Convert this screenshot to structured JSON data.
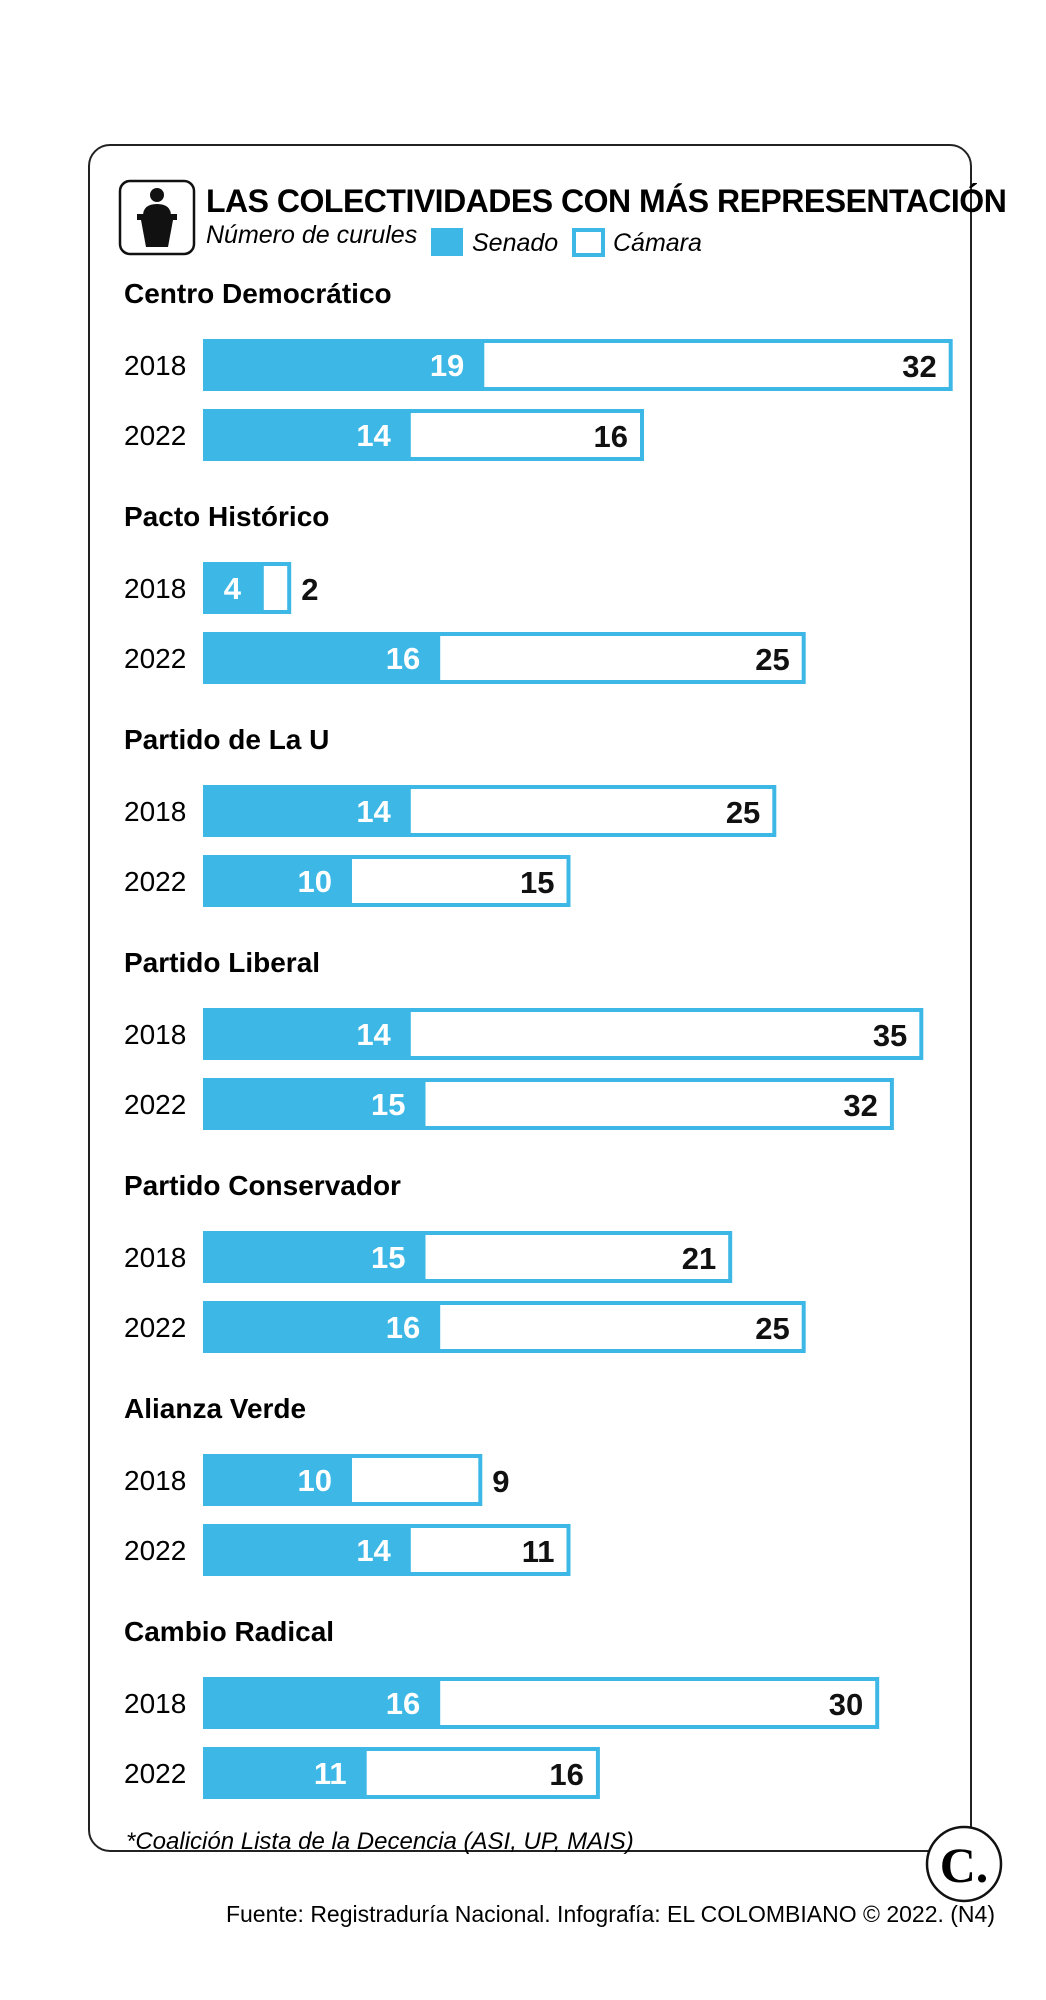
{
  "chart_data": {
    "type": "bar",
    "title": "LAS COLECTIVIDADES CON MÁS REPRESENTACIÓN",
    "subtitle": "Número de curules",
    "legend": [
      {
        "name": "Senado",
        "style": "filled"
      },
      {
        "name": "Cámara",
        "style": "outline"
      }
    ],
    "colors": {
      "senado": "#3db8e6",
      "camara_fill": "#ffffff",
      "camara_stroke": "#3db8e6",
      "text": "#111111"
    },
    "stacking": "stacked",
    "groups": [
      {
        "party": "Centro Democrático",
        "rows": [
          {
            "year": "2018",
            "senado": 19,
            "camara": 32
          },
          {
            "year": "2022",
            "senado": 14,
            "camara": 16
          }
        ]
      },
      {
        "party": "Pacto Histórico",
        "rows": [
          {
            "year": "2018",
            "senado": 4,
            "camara": 2
          },
          {
            "year": "2022",
            "senado": 16,
            "camara": 25
          }
        ]
      },
      {
        "party": "Partido de La U",
        "rows": [
          {
            "year": "2018",
            "senado": 14,
            "camara": 25
          },
          {
            "year": "2022",
            "senado": 10,
            "camara": 15
          }
        ]
      },
      {
        "party": "Partido Liberal",
        "rows": [
          {
            "year": "2018",
            "senado": 14,
            "camara": 35
          },
          {
            "year": "2022",
            "senado": 15,
            "camara": 32
          }
        ]
      },
      {
        "party": "Partido Conservador",
        "rows": [
          {
            "year": "2018",
            "senado": 15,
            "camara": 21
          },
          {
            "year": "2022",
            "senado": 16,
            "camara": 25
          }
        ]
      },
      {
        "party": "Alianza Verde",
        "rows": [
          {
            "year": "2018",
            "senado": 10,
            "camara": 9
          },
          {
            "year": "2022",
            "senado": 14,
            "camara": 11
          }
        ]
      },
      {
        "party": "Cambio Radical",
        "rows": [
          {
            "year": "2018",
            "senado": 16,
            "camara": 30
          },
          {
            "year": "2022",
            "senado": 11,
            "camara": 16
          }
        ]
      }
    ],
    "footnote": "*Coalición Lista de la Decencia (ASI, UP, MAIS)"
  },
  "source": "Fuente: Registraduría Nacional. Infografía: EL COLOMBIANO © 2022. (N4)",
  "logo_text": "C.",
  "icon": "podium-speaker-icon"
}
